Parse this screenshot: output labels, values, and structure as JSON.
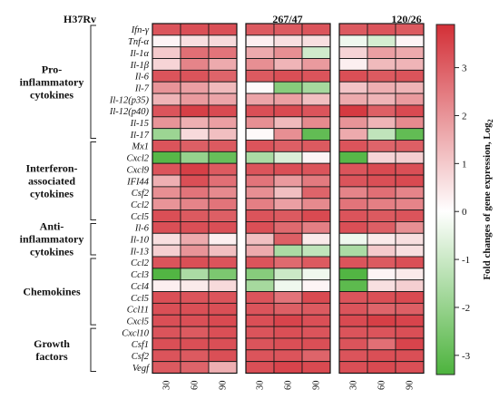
{
  "chart_data": {
    "type": "heatmap",
    "panels": [
      "H37Rv",
      "267/47",
      "120/26"
    ],
    "timepoints": [
      "30",
      "60",
      "90"
    ],
    "genes": [
      "Ifn-γ",
      "Tnf-α",
      "Il-1α",
      "Il-1β",
      "Il-6",
      "Il-7",
      "Il-12(p35)",
      "Il-12(p40)",
      "Il-15",
      "Il-17",
      "Mx1",
      "Cxcl2",
      "Cxcl9",
      "IFI44",
      "Csf2",
      "Ccl2",
      "Ccl5",
      "Il-6",
      "Il-10",
      "Il-13",
      "Ccl2",
      "Ccl3",
      "Ccl4",
      "Ccl5",
      "Ccl11",
      "Cxcl5",
      "Cxcl10",
      "Csf1",
      "Csf2",
      "Vegf"
    ],
    "groups": [
      {
        "lines": [
          "Pro-",
          "inflammatory",
          "cytokines"
        ],
        "start": 0,
        "end": 9
      },
      {
        "lines": [
          "Interferon-",
          "associated",
          "cytokines"
        ],
        "start": 10,
        "end": 16
      },
      {
        "lines": [
          "Anti-",
          "inflammatory",
          "cytokines"
        ],
        "start": 17,
        "end": 19
      },
      {
        "lines": [
          "Chemokines"
        ],
        "start": 20,
        "end": 25
      },
      {
        "lines": [
          "Growth",
          "factors"
        ],
        "start": 26,
        "end": 29
      }
    ],
    "values": [
      [
        [
          3.2,
          3.3,
          3.3
        ],
        [
          3.1,
          3.1,
          3.2
        ],
        [
          3.1,
          3.2,
          3.1
        ]
      ],
      [
        [
          0.2,
          0.6,
          0.7
        ],
        [
          0.3,
          0.6,
          0.6
        ],
        [
          -0.3,
          -0.8,
          0.2
        ]
      ],
      [
        [
          1.0,
          2.7,
          2.6
        ],
        [
          1.6,
          2.1,
          -0.9
        ],
        [
          0.8,
          1.8,
          1.6
        ]
      ],
      [
        [
          0.8,
          2.3,
          1.6
        ],
        [
          2.1,
          1.4,
          1.9
        ],
        [
          0.3,
          1.3,
          1.4
        ]
      ],
      [
        [
          3.2,
          3.2,
          2.9
        ],
        [
          3.1,
          3.3,
          3.2
        ],
        [
          3.3,
          3.1,
          3.2
        ]
      ],
      [
        [
          2.0,
          1.8,
          1.3
        ],
        [
          0.1,
          -2.3,
          -1.7
        ],
        [
          1.1,
          1.5,
          1.4
        ]
      ],
      [
        [
          1.4,
          1.9,
          1.7
        ],
        [
          1.7,
          1.8,
          1.2
        ],
        [
          1.6,
          1.4,
          1.9
        ]
      ],
      [
        [
          3.2,
          3.6,
          3.4
        ],
        [
          3.3,
          3.4,
          3.2
        ],
        [
          3.7,
          3.0,
          3.4
        ]
      ],
      [
        [
          2.0,
          1.5,
          1.8
        ],
        [
          2.1,
          1.3,
          2.2
        ],
        [
          2.0,
          1.4,
          2.2
        ]
      ],
      [
        [
          -1.9,
          0.7,
          1.2
        ],
        [
          0.1,
          2.1,
          -3.0
        ],
        [
          1.6,
          -1.2,
          -3.0
        ]
      ],
      [
        [
          3.2,
          3.0,
          3.1
        ],
        [
          3.2,
          3.0,
          3.1
        ],
        [
          3.2,
          2.9,
          3.0
        ]
      ],
      [
        [
          -3.2,
          -2.0,
          -2.9
        ],
        [
          -1.6,
          -0.7,
          0.2
        ],
        [
          -3.2,
          0.8,
          0.9
        ]
      ],
      [
        [
          3.2,
          3.6,
          3.1
        ],
        [
          3.2,
          3.3,
          3.2
        ],
        [
          3.2,
          3.4,
          3.3
        ]
      ],
      [
        [
          1.5,
          3.3,
          2.7
        ],
        [
          2.6,
          1.9,
          2.5
        ],
        [
          3.2,
          3.3,
          3.4
        ]
      ],
      [
        [
          2.1,
          2.6,
          2.2
        ],
        [
          2.1,
          1.2,
          2.9
        ],
        [
          2.3,
          2.7,
          2.3
        ]
      ],
      [
        [
          2.0,
          2.3,
          2.6
        ],
        [
          2.4,
          1.8,
          2.2
        ],
        [
          2.6,
          2.4,
          2.3
        ]
      ],
      [
        [
          3.3,
          3.1,
          3.0
        ],
        [
          3.2,
          3.1,
          3.4
        ],
        [
          3.2,
          3.1,
          3.2
        ]
      ],
      [
        [
          3.3,
          3.3,
          3.3
        ],
        [
          3.3,
          2.8,
          2.4
        ],
        [
          3.3,
          3.0,
          2.1
        ]
      ],
      [
        [
          0.6,
          1.6,
          0.3
        ],
        [
          1.2,
          3.0,
          0.4
        ],
        [
          -0.3,
          0.4,
          0.6
        ]
      ],
      [
        [
          0.9,
          2.0,
          1.2
        ],
        [
          1.6,
          -1.6,
          -1.2
        ],
        [
          -1.6,
          1.0,
          0.6
        ]
      ],
      [
        [
          3.2,
          3.3,
          3.2
        ],
        [
          3.2,
          2.8,
          3.1
        ],
        [
          3.2,
          3.1,
          3.3
        ]
      ],
      [
        [
          -3.3,
          -1.6,
          -2.5
        ],
        [
          -2.3,
          -1.0,
          -0.3
        ],
        [
          -3.3,
          0.2,
          0.4
        ]
      ],
      [
        [
          0.3,
          0.4,
          0.7
        ],
        [
          -1.7,
          -0.3,
          0.2
        ],
        [
          -3.1,
          0.6,
          0.9
        ]
      ],
      [
        [
          3.3,
          3.2,
          3.2
        ],
        [
          3.2,
          2.6,
          3.4
        ],
        [
          3.2,
          3.3,
          3.4
        ]
      ],
      [
        [
          3.3,
          3.3,
          3.3
        ],
        [
          3.2,
          3.0,
          3.1
        ],
        [
          3.2,
          2.9,
          3.0
        ]
      ],
      [
        [
          3.3,
          3.3,
          3.4
        ],
        [
          3.3,
          3.5,
          3.3
        ],
        [
          3.4,
          3.6,
          3.5
        ]
      ],
      [
        [
          3.2,
          3.1,
          3.3
        ],
        [
          3.2,
          3.3,
          3.2
        ],
        [
          3.2,
          3.2,
          3.3
        ]
      ],
      [
        [
          3.3,
          3.3,
          3.3
        ],
        [
          3.2,
          3.3,
          3.3
        ],
        [
          3.2,
          2.7,
          3.5
        ]
      ],
      [
        [
          3.2,
          3.1,
          3.3
        ],
        [
          3.2,
          3.2,
          2.9
        ],
        [
          3.2,
          3.3,
          3.3
        ]
      ],
      [
        [
          3.1,
          2.9,
          1.5
        ],
        [
          3.3,
          3.5,
          3.4
        ],
        [
          3.3,
          3.4,
          3.3
        ]
      ]
    ],
    "colorbar": {
      "label": "Fold changes of gene expression, Log",
      "label_subscript": "2",
      "ticks": [
        "3",
        "2",
        "1",
        "0",
        "-1",
        "-2",
        "-3"
      ],
      "tick_values": [
        3,
        2,
        1,
        0,
        -1,
        -2,
        -3
      ],
      "range": [
        -3.4,
        3.9
      ],
      "colors": {
        "low": "#4db33d",
        "mid": "#ffffff",
        "high": "#d32f37"
      }
    },
    "grid": false,
    "legend": "right"
  }
}
